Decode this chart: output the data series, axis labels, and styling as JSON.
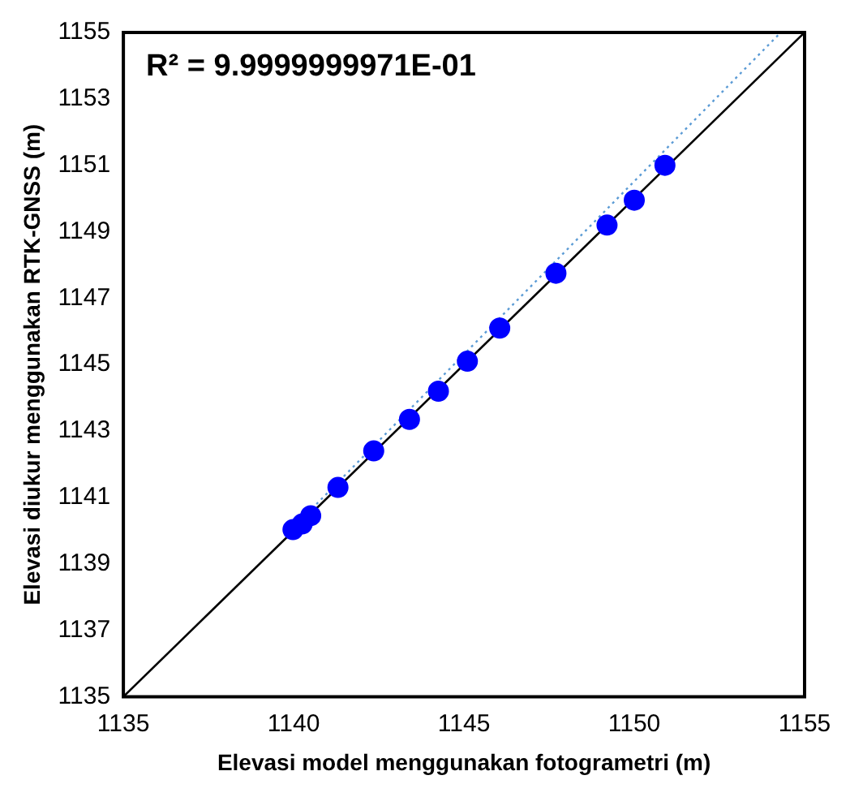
{
  "chart_data": {
    "type": "scatter",
    "xlabel": "Elevasi model menggunakan fotogrametri (m)",
    "ylabel": "Elevasi diukur menggunakan RTK-GNSS (m)",
    "annotations": [
      "R² = 9.9999999971E-01"
    ],
    "x": [
      1139.98,
      1140.25,
      1140.5,
      1141.3,
      1142.35,
      1143.4,
      1144.25,
      1145.1,
      1146.05,
      1147.7,
      1149.2,
      1150.0,
      1150.9
    ],
    "series": [
      {
        "color": "#0000ff",
        "marker": "circle",
        "values": [
          1140.03,
          1140.2,
          1140.45,
          1141.3,
          1142.4,
          1143.35,
          1144.2,
          1145.1,
          1146.1,
          1147.75,
          1149.2,
          1149.95,
          1151.0
        ]
      },
      {
        "type": "line",
        "color": "#000000",
        "line_style": "solid",
        "marker": "none",
        "x": [
          1135,
          1155
        ],
        "values": [
          1135,
          1155
        ]
      },
      {
        "type": "line",
        "color": "#5b9bd5",
        "line_style": "dotted",
        "marker": "none",
        "x": [
          1140,
          1154.3
        ],
        "values": [
          1140.1,
          1155
        ]
      }
    ],
    "xlim": [
      1135,
      1155
    ],
    "ylim": [
      1135,
      1155
    ],
    "xticks": [
      1135,
      1140,
      1145,
      1150,
      1155
    ],
    "yticks": [
      1135,
      1137,
      1139,
      1141,
      1143,
      1145,
      1147,
      1149,
      1151,
      1153,
      1155
    ],
    "grid": false,
    "legend": false
  }
}
